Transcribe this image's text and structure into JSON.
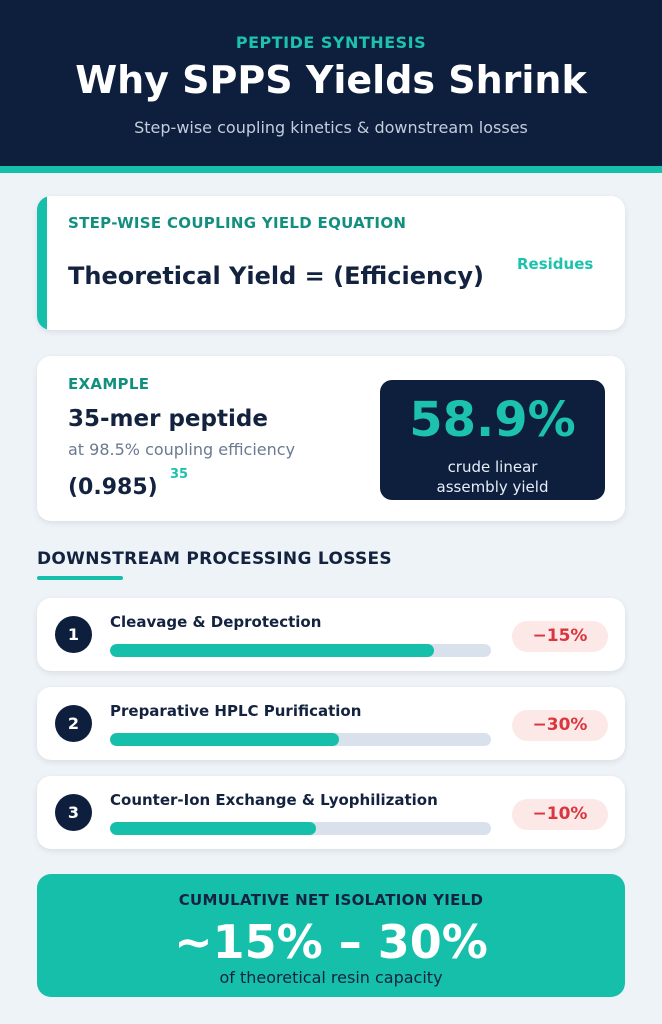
{
  "header": {
    "kicker": "PEPTIDE SYNTHESIS",
    "title": "Why SPPS Yields Shrink",
    "subtitle": "Step-wise coupling kinetics & downstream losses"
  },
  "equation": {
    "label": "STEP-WISE COUPLING YIELD EQUATION",
    "formula": "Theoretical Yield = (Efficiency)",
    "exponent": "Residues"
  },
  "example": {
    "label": "EXAMPLE",
    "name": "35-mer peptide",
    "note": "at 98.5% coupling efficiency",
    "base": "(0.985)",
    "exponent": "35",
    "result_value": "58.9%",
    "result_caption_1": "crude linear",
    "result_caption_2": "assembly yield"
  },
  "losses": {
    "title": "DOWNSTREAM PROCESSING LOSSES",
    "items": [
      {
        "number": "1",
        "name": "Cleavage & Deprotection",
        "value": "−15%",
        "fill_fraction": 0.85
      },
      {
        "number": "2",
        "name": "Preparative HPLC Purification",
        "value": "−30%",
        "fill_fraction": 0.6
      },
      {
        "number": "3",
        "name": "Counter-Ion Exchange & Lyophilization",
        "value": "−10%",
        "fill_fraction": 0.54
      }
    ]
  },
  "total": {
    "label": "CUMULATIVE NET ISOLATION YIELD",
    "value": "~15% – 30%",
    "sub": "of theoretical resin capacity"
  },
  "colors": {
    "navy": "#0e1f3e",
    "teal": "#15bfaa",
    "loss_red": "#d9363e"
  }
}
